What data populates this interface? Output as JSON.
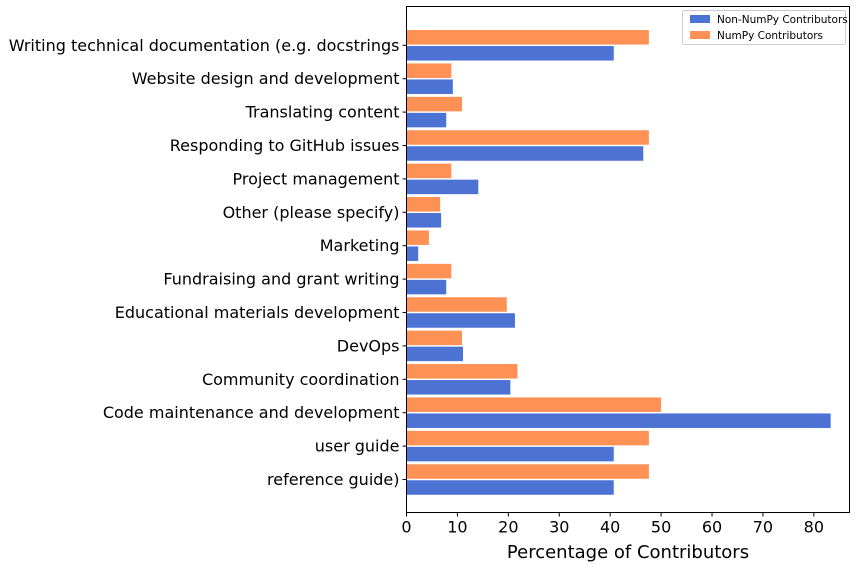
{
  "chart_data": {
    "type": "bar",
    "orientation": "horizontal",
    "title": "",
    "xlabel": "Percentage of Contributors",
    "ylabel": "",
    "xlim": [
      0,
      87
    ],
    "xticks": [
      0,
      10,
      20,
      30,
      40,
      50,
      60,
      70,
      80
    ],
    "grid": false,
    "legend_position": "top-right",
    "categories": [
      "reference guide)",
      "user guide",
      "Code maintenance and development",
      "Community coordination",
      "DevOps",
      "Educational materials development",
      "Fundraising and grant writing",
      "Marketing",
      "Other (please specify)",
      "Project management",
      "Responding to GitHub issues",
      "Translating content",
      "Website design and development",
      "Writing technical documentation (e.g. docstrings"
    ],
    "series": [
      {
        "name": "Non-NumPy Contributors",
        "color": "#4c72d4",
        "values": [
          40.7,
          40.7,
          83.3,
          20.4,
          11.1,
          21.3,
          7.8,
          2.3,
          6.8,
          14.1,
          46.5,
          7.8,
          9.1,
          40.7
        ]
      },
      {
        "name": "NumPy Contributors",
        "color": "#ff9155",
        "values": [
          47.6,
          47.6,
          50.0,
          21.8,
          10.9,
          19.7,
          8.8,
          4.4,
          6.6,
          8.8,
          47.6,
          10.9,
          8.8,
          47.6
        ]
      }
    ]
  }
}
